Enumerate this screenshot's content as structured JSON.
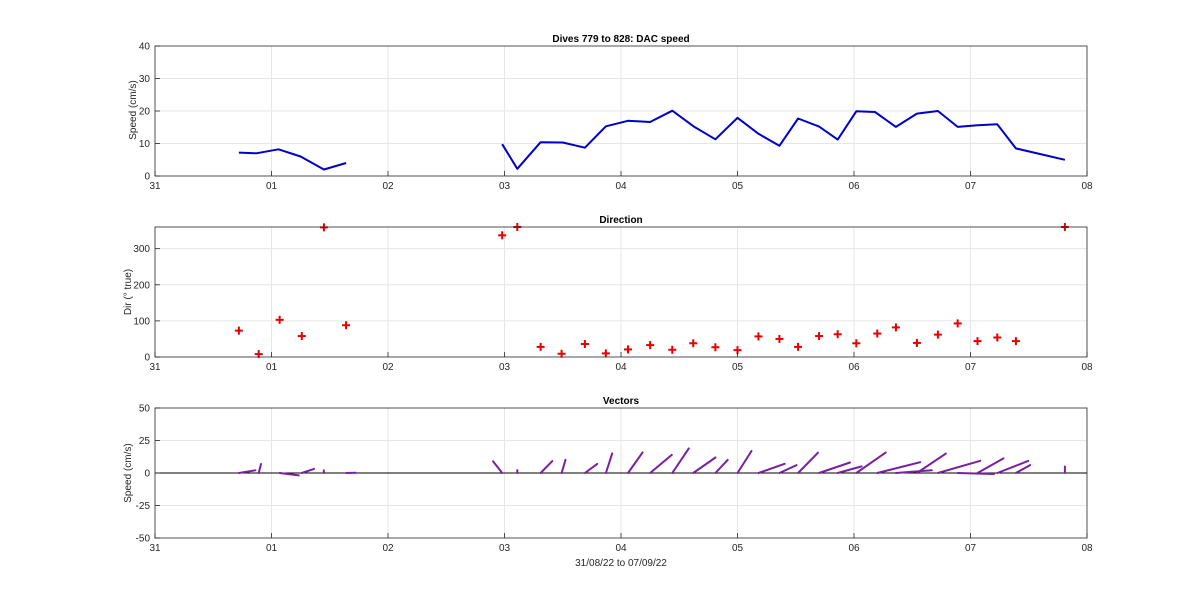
{
  "chart_data": [
    {
      "type": "line",
      "title": "Dives 779 to 828: DAC speed",
      "xlabel": "",
      "ylabel": "Speed (cm/s)",
      "x_ticks": [
        "31",
        "01",
        "02",
        "03",
        "04",
        "05",
        "06",
        "07",
        "08"
      ],
      "xlim_days": [
        0,
        8
      ],
      "ylim": [
        0,
        40
      ],
      "y_ticks": [
        "0",
        "10",
        "20",
        "30",
        "40"
      ],
      "grid": true,
      "color": "#0000c8",
      "segments": [
        [
          [
            0.72,
            7.2
          ],
          [
            0.87,
            7.0
          ],
          [
            1.06,
            8.2
          ],
          [
            1.25,
            6.0
          ],
          [
            1.45,
            2.0
          ],
          [
            1.64,
            4.0
          ]
        ],
        [
          [
            2.98,
            9.8
          ],
          [
            3.11,
            2.2
          ],
          [
            3.31,
            10.4
          ],
          [
            3.5,
            10.3
          ],
          [
            3.69,
            8.7
          ],
          [
            3.87,
            15.3
          ],
          [
            4.06,
            17.0
          ],
          [
            4.25,
            16.6
          ],
          [
            4.44,
            20.1
          ],
          [
            4.63,
            15.1
          ],
          [
            4.81,
            11.3
          ],
          [
            5.0,
            17.9
          ],
          [
            5.18,
            13.0
          ],
          [
            5.36,
            9.3
          ],
          [
            5.52,
            17.7
          ],
          [
            5.7,
            15.2
          ],
          [
            5.86,
            11.2
          ],
          [
            6.02,
            19.9
          ],
          [
            6.18,
            19.7
          ],
          [
            6.36,
            15.1
          ],
          [
            6.54,
            19.2
          ],
          [
            6.72,
            20.0
          ],
          [
            6.89,
            15.1
          ],
          [
            7.06,
            15.6
          ],
          [
            7.23,
            15.9
          ],
          [
            7.39,
            8.5
          ],
          [
            7.81,
            5.0
          ]
        ]
      ]
    },
    {
      "type": "scatter",
      "title": "Direction",
      "xlabel": "",
      "ylabel": "Dir (° true)",
      "x_ticks": [
        "31",
        "01",
        "02",
        "03",
        "04",
        "05",
        "06",
        "07",
        "08"
      ],
      "xlim_days": [
        0,
        8
      ],
      "ylim": [
        0,
        360
      ],
      "y_ticks": [
        "0",
        "100",
        "200",
        "300"
      ],
      "grid": true,
      "color": "#e60000",
      "marker": "plus",
      "points": [
        [
          0.72,
          73
        ],
        [
          0.89,
          8
        ],
        [
          1.07,
          103
        ],
        [
          1.26,
          58
        ],
        [
          1.45,
          359
        ],
        [
          1.64,
          88
        ],
        [
          2.98,
          337
        ],
        [
          3.11,
          360
        ],
        [
          3.31,
          28
        ],
        [
          3.49,
          9
        ],
        [
          3.69,
          36
        ],
        [
          3.87,
          10
        ],
        [
          4.06,
          21
        ],
        [
          4.25,
          33
        ],
        [
          4.44,
          20
        ],
        [
          4.62,
          38
        ],
        [
          4.81,
          27
        ],
        [
          5.0,
          19
        ],
        [
          5.18,
          57
        ],
        [
          5.36,
          50
        ],
        [
          5.52,
          28
        ],
        [
          5.7,
          58
        ],
        [
          5.86,
          63
        ],
        [
          6.02,
          38
        ],
        [
          6.2,
          65
        ],
        [
          6.36,
          82
        ],
        [
          6.54,
          39
        ],
        [
          6.72,
          62
        ],
        [
          6.89,
          93
        ],
        [
          7.06,
          44
        ],
        [
          7.23,
          54
        ],
        [
          7.39,
          44
        ],
        [
          7.81,
          360
        ]
      ]
    },
    {
      "type": "quiver",
      "title": "Vectors",
      "xlabel": "31/08/22 to 07/09/22",
      "ylabel": "Speed (cm/s)",
      "x_ticks": [
        "31",
        "01",
        "02",
        "03",
        "04",
        "05",
        "06",
        "07",
        "08"
      ],
      "xlim_days": [
        0,
        8
      ],
      "ylim": [
        -50,
        50
      ],
      "y_ticks": [
        "-50",
        "-25",
        "0",
        "25",
        "50"
      ],
      "grid": true,
      "color": "#7a1fa2",
      "vectors": [
        [
          0.72,
          7.2,
          73
        ],
        [
          0.89,
          7.0,
          8
        ],
        [
          1.07,
          8.2,
          103
        ],
        [
          1.26,
          6.0,
          58
        ],
        [
          1.45,
          2.0,
          359
        ],
        [
          1.64,
          4.0,
          88
        ],
        [
          2.98,
          9.8,
          337
        ],
        [
          3.11,
          2.2,
          360
        ],
        [
          3.31,
          10.4,
          28
        ],
        [
          3.49,
          10.3,
          9
        ],
        [
          3.69,
          8.7,
          36
        ],
        [
          3.87,
          15.3,
          10
        ],
        [
          4.06,
          17.0,
          21
        ],
        [
          4.25,
          16.6,
          33
        ],
        [
          4.44,
          20.1,
          20
        ],
        [
          4.62,
          15.1,
          38
        ],
        [
          4.81,
          11.3,
          27
        ],
        [
          5.0,
          17.9,
          19
        ],
        [
          5.18,
          13.0,
          57
        ],
        [
          5.36,
          9.3,
          50
        ],
        [
          5.52,
          17.7,
          28
        ],
        [
          5.7,
          15.2,
          58
        ],
        [
          5.86,
          11.2,
          63
        ],
        [
          6.02,
          19.9,
          38
        ],
        [
          6.2,
          19.7,
          65
        ],
        [
          6.36,
          15.1,
          82
        ],
        [
          6.54,
          19.2,
          39
        ],
        [
          6.72,
          20.0,
          62
        ],
        [
          6.89,
          15.1,
          93
        ],
        [
          7.06,
          15.6,
          44
        ],
        [
          7.23,
          15.9,
          54
        ],
        [
          7.39,
          8.5,
          44
        ],
        [
          7.81,
          5.0,
          360
        ]
      ]
    }
  ]
}
